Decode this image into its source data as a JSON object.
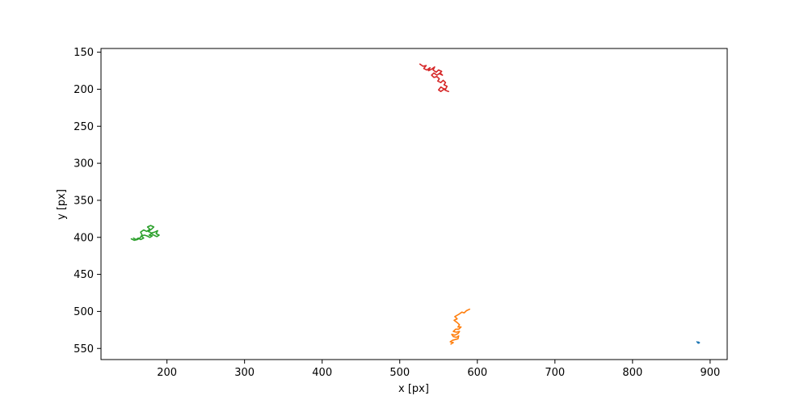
{
  "chart_data": {
    "type": "line",
    "title": "",
    "xlabel": "x [px]",
    "ylabel": "y [px]",
    "xlim": [
      115,
      922
    ],
    "ylim": [
      565,
      145
    ],
    "y_inverted": true,
    "xticks": [
      200,
      300,
      400,
      500,
      600,
      700,
      800,
      900
    ],
    "yticks": [
      150,
      200,
      250,
      300,
      350,
      400,
      450,
      500,
      550
    ],
    "grid": false,
    "legend": "none",
    "series": [
      {
        "color": "#1f77b4",
        "x": [
          883.0,
          884.2,
          885.0,
          884.1,
          885.4,
          886.2
        ],
        "y": [
          541.0,
          542.0,
          541.3,
          542.6,
          542.9,
          542.1
        ]
      },
      {
        "color": "#ff7f0e",
        "x": [
          590,
          586,
          583,
          580,
          576,
          571,
          574,
          570,
          574,
          577,
          575,
          579,
          576,
          572,
          569,
          573,
          577,
          575,
          571,
          567,
          569,
          573,
          576,
          575,
          571,
          568,
          565,
          569,
          566
        ],
        "y": [
          497,
          499,
          502,
          501,
          504,
          507,
          510,
          512,
          515,
          518,
          521,
          521,
          524,
          524,
          527,
          528,
          527,
          530,
          532,
          531,
          534,
          535,
          533,
          537,
          538,
          539,
          541,
          542,
          544
        ]
      },
      {
        "color": "#2ca02c",
        "x": [
          154,
          158,
          162,
          165,
          168,
          166,
          170,
          174,
          178,
          175,
          179,
          183,
          180,
          176,
          180,
          184,
          188,
          186,
          190,
          187,
          183,
          180,
          177,
          181,
          178,
          174,
          171,
          167,
          170,
          166,
          163,
          160,
          157
        ],
        "y": [
          402,
          404,
          403,
          401,
          397,
          393,
          390,
          392,
          389,
          386,
          384,
          386,
          389,
          392,
          394,
          393,
          391,
          395,
          397,
          399,
          397,
          395,
          397,
          398,
          400,
          398,
          397,
          398,
          401,
          403,
          401,
          403,
          401
        ]
      },
      {
        "color": "#d62728",
        "x": [
          526,
          530,
          534,
          531,
          535,
          539,
          537,
          541,
          545,
          543,
          547,
          550,
          554,
          551,
          555,
          552,
          548,
          544,
          541,
          544,
          548,
          551,
          549,
          553,
          556,
          559,
          557,
          561,
          559,
          556,
          553,
          550,
          553,
          557,
          560,
          563
        ],
        "y": [
          166,
          169,
          168,
          172,
          174,
          171,
          175,
          173,
          170,
          174,
          177,
          174,
          176,
          179,
          181,
          178,
          181,
          178,
          181,
          184,
          183,
          186,
          189,
          191,
          188,
          191,
          194,
          196,
          200,
          199,
          197,
          201,
          203,
          200,
          202,
          203
        ]
      }
    ]
  }
}
